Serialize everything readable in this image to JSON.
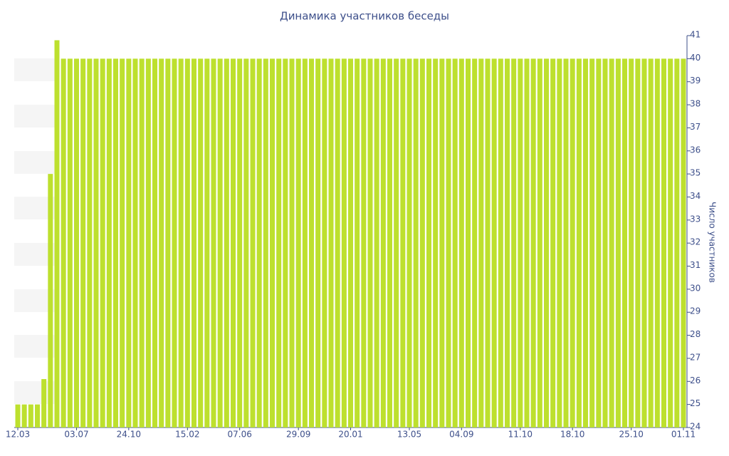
{
  "chart_data": {
    "type": "bar",
    "title": "Динамика участников беседы",
    "y_label": "Число участников",
    "categories": [
      "12.03",
      null,
      null,
      null,
      null,
      null,
      null,
      null,
      null,
      "03.07",
      null,
      null,
      null,
      null,
      null,
      null,
      null,
      "24.10",
      null,
      null,
      null,
      null,
      null,
      null,
      null,
      null,
      "15.02",
      null,
      null,
      null,
      null,
      null,
      null,
      null,
      "07.06",
      null,
      null,
      null,
      null,
      null,
      null,
      null,
      null,
      "29.09",
      null,
      null,
      null,
      null,
      null,
      null,
      null,
      "20.01",
      null,
      null,
      null,
      null,
      null,
      null,
      null,
      null,
      "13.05",
      null,
      null,
      null,
      null,
      null,
      null,
      null,
      "04.09",
      null,
      null,
      null,
      null,
      null,
      null,
      null,
      null,
      "11.10",
      null,
      null,
      null,
      null,
      null,
      null,
      null,
      "18.10",
      null,
      null,
      null,
      null,
      null,
      null,
      null,
      null,
      "25.10",
      null,
      null,
      null,
      null,
      null,
      null,
      null,
      "01.11"
    ],
    "values": [
      25,
      25,
      25,
      25,
      26.1,
      35,
      40.8,
      40,
      40,
      40,
      40,
      40,
      40,
      40,
      40,
      40,
      40,
      40,
      40,
      40,
      40,
      40,
      40,
      40,
      40,
      40,
      40,
      40,
      40,
      40,
      40,
      40,
      40,
      40,
      40,
      40,
      40,
      40,
      40,
      40,
      40,
      40,
      40,
      40,
      40,
      40,
      40,
      40,
      40,
      40,
      40,
      40,
      40,
      40,
      40,
      40,
      40,
      40,
      40,
      40,
      40,
      40,
      40,
      40,
      40,
      40,
      40,
      40,
      40,
      40,
      40,
      40,
      40,
      40,
      40,
      40,
      40,
      40,
      40,
      40,
      40,
      40,
      40,
      40,
      40,
      40,
      40,
      40,
      40,
      40,
      40,
      40,
      40,
      40,
      40,
      40,
      40,
      40,
      40,
      40,
      40,
      40,
      40
    ],
    "color": "#bde02e",
    "ylim": [
      24,
      41
    ],
    "yticks": [
      24,
      25,
      26,
      27,
      28,
      29,
      30,
      31,
      32,
      33,
      34,
      35,
      36,
      37,
      38,
      39,
      40,
      41
    ],
    "y_axis_side": "right"
  }
}
